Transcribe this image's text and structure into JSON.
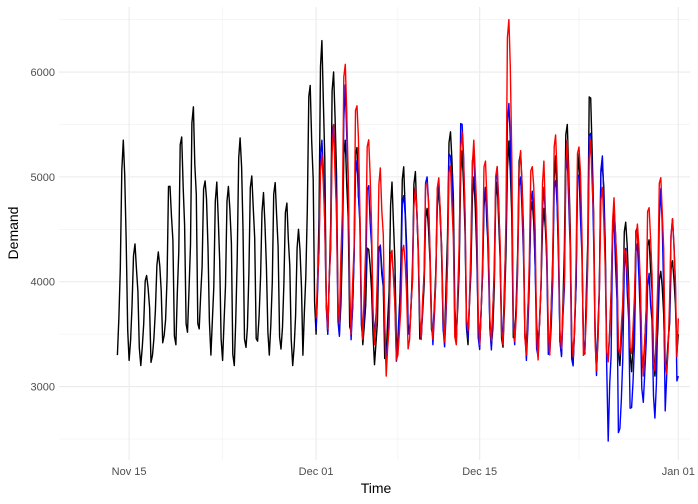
{
  "chart_data": {
    "type": "line",
    "title": "",
    "xlabel": "Time",
    "ylabel": "Demand",
    "x_range": [
      "2024-11-09",
      "2025-01-02"
    ],
    "ylim": [
      2300,
      6620
    ],
    "x_ticks": [
      {
        "date": "2024-11-15",
        "label": "Nov 15"
      },
      {
        "date": "2024-12-01",
        "label": "Dec 01"
      },
      {
        "date": "2024-12-15",
        "label": "Dec 15"
      },
      {
        "date": "2025-01-01",
        "label": "Jan 01"
      }
    ],
    "y_ticks": [
      3000,
      4000,
      5000,
      6000
    ],
    "grid": true,
    "legend": "none",
    "series": [
      {
        "color": "#000000",
        "start": "2024-11-14",
        "end": "2025-01-01",
        "points_per_day": 8,
        "day_peaks": [
          5350,
          4380,
          4100,
          4300,
          5000,
          5380,
          5680,
          5000,
          4950,
          5000,
          5420,
          5080,
          4850,
          4950,
          4750,
          4500,
          5900,
          6300,
          6000,
          5350,
          5280,
          4350,
          4400,
          4950,
          5100,
          5050,
          4700,
          4900,
          5550,
          5250,
          5000,
          4900,
          4950,
          5350,
          5250,
          4800,
          4700,
          5200,
          5500,
          5300,
          5850,
          5200,
          4700,
          4600,
          4550,
          4400,
          4100,
          4200,
          4050
        ],
        "day_troughs": [
          3300,
          3250,
          3200,
          3300,
          3400,
          3400,
          3500,
          3550,
          3300,
          3250,
          3200,
          3300,
          3350,
          3300,
          3350,
          3200,
          3600,
          3500,
          3500,
          3500,
          3450,
          3400,
          3150,
          3300,
          3400,
          3400,
          3450,
          3450,
          3450,
          3400,
          3400,
          3400,
          3300,
          3350,
          3400,
          3400,
          3350,
          3350,
          3300,
          3150,
          3250,
          3150,
          3200,
          3200,
          3100,
          3150,
          3100,
          3200,
          3500
        ],
        "noise_seed": 11
      },
      {
        "color": "#0000ff",
        "start": "2024-12-01",
        "end": "2025-01-01",
        "points_per_day": 8,
        "day_peaks": [
          5350,
          5600,
          5900,
          5250,
          4950,
          4350,
          4300,
          4900,
          4950,
          5000,
          4950,
          5300,
          5600,
          5300,
          4900,
          5100,
          5700,
          5000,
          4950,
          4900,
          5000,
          5200,
          5100,
          5500,
          5200,
          4700,
          4350,
          4400,
          4100,
          4900,
          4600,
          4400
        ],
        "day_troughs": [
          3550,
          3500,
          3480,
          3400,
          3450,
          3500,
          3200,
          3450,
          3450,
          3450,
          3400,
          3380,
          3400,
          3400,
          3350,
          3350,
          3400,
          3400,
          3250,
          3250,
          3300,
          3200,
          3150,
          3200,
          3100,
          2480,
          2600,
          2800,
          2850,
          2700,
          3000,
          3100
        ],
        "noise_seed": 23
      },
      {
        "color": "#ff0000",
        "start": "2024-12-01",
        "end": "2025-01-01",
        "points_per_day": 8,
        "day_peaks": [
          5300,
          5500,
          6200,
          5700,
          5400,
          5100,
          4300,
          4400,
          4900,
          5000,
          5000,
          5200,
          5450,
          5400,
          5150,
          5100,
          6500,
          5250,
          5200,
          5150,
          5400,
          5350,
          5350,
          5450,
          4900,
          4800,
          4350,
          4550,
          4750,
          5050,
          4650,
          4450
        ],
        "day_troughs": [
          3650,
          3550,
          3600,
          3500,
          3450,
          3400,
          3100,
          3300,
          3450,
          3450,
          3450,
          3400,
          3400,
          3450,
          3400,
          3400,
          3400,
          3400,
          3300,
          3250,
          3300,
          3300,
          3200,
          3300,
          3150,
          3200,
          3300,
          3250,
          3100,
          3150,
          3100,
          3650
        ],
        "noise_seed": 37
      }
    ]
  }
}
